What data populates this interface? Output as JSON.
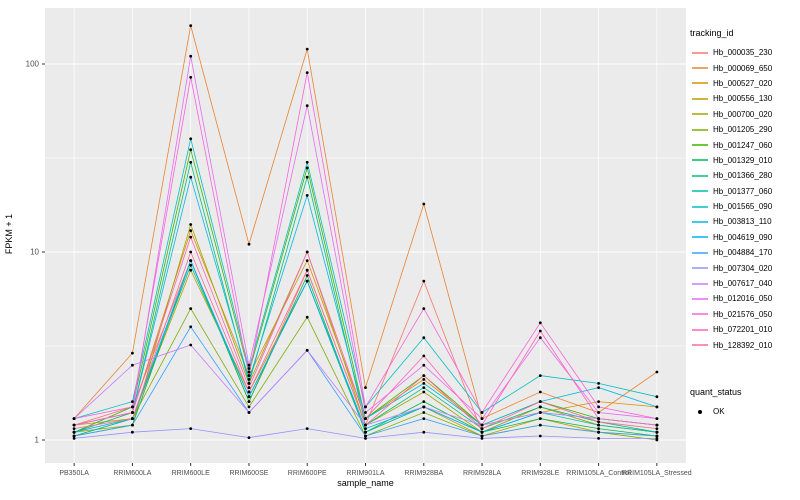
{
  "panel": {
    "background": "#EBEBEB",
    "grid_major_color": "#FFFFFF",
    "grid_minor_color": "#FFFFFF",
    "tick_color": "#333333",
    "tick_label_color": "#4D4D4D",
    "point_color": "#000000"
  },
  "chart_data": {
    "type": "line",
    "title": "",
    "xlabel": "sample_name",
    "ylabel": "FPKM + 1",
    "y_scale": "log10",
    "y_ticks": [
      1,
      10,
      100
    ],
    "y_minor_ticks": [
      3.1623,
      31.623
    ],
    "ylim": [
      1,
      200
    ],
    "legend_position": "right",
    "grid": true,
    "legend_titles": {
      "series": "tracking_id",
      "status": "quant_status"
    },
    "quant_status": {
      "label": "OK"
    },
    "categories": [
      "PB350LA",
      "RRIM600LA",
      "RRIM600LE",
      "RRIM600SE",
      "RRIM600PE",
      "RRIM901LA",
      "RRIM928BA",
      "RRIM928LA",
      "RRIM928LE",
      "RRIM105LA_Control",
      "RRIM105LA_Stressed"
    ],
    "series": [
      {
        "name": "Hb_000035_230",
        "color": "#F8766D",
        "values": [
          1.2,
          1.5,
          9,
          1.6,
          8,
          1.2,
          7,
          1.1,
          1.5,
          1.2,
          1.1
        ]
      },
      {
        "name": "Hb_000069_650",
        "color": "#EA8331",
        "values": [
          1.3,
          2.9,
          160,
          11,
          120,
          1.9,
          18,
          1.3,
          1.8,
          1.4,
          2.3
        ]
      },
      {
        "name": "Hb_000527_020",
        "color": "#D89000",
        "values": [
          1.1,
          1.4,
          13,
          2.2,
          9,
          1.3,
          2.1,
          1.2,
          1.4,
          1.6,
          1.5
        ]
      },
      {
        "name": "Hb_000556_130",
        "color": "#C09B00",
        "values": [
          1.2,
          1.3,
          8,
          1.8,
          7,
          1.1,
          1.5,
          1.05,
          1.3,
          1.1,
          1.05
        ]
      },
      {
        "name": "Hb_000700_020",
        "color": "#A3A500",
        "values": [
          1.1,
          1.2,
          14,
          2.0,
          10,
          1.2,
          1.8,
          1.1,
          1.5,
          1.2,
          1.1
        ]
      },
      {
        "name": "Hb_001205_290",
        "color": "#7CAE00",
        "values": [
          1.05,
          1.3,
          5,
          1.5,
          4.5,
          1.05,
          1.4,
          1.05,
          1.2,
          1.1,
          1.0
        ]
      },
      {
        "name": "Hb_001247_060",
        "color": "#39B600",
        "values": [
          1.1,
          1.5,
          35,
          2.3,
          28,
          1.3,
          2.2,
          1.2,
          1.6,
          1.3,
          1.2
        ]
      },
      {
        "name": "Hb_001329_010",
        "color": "#00BB4E",
        "values": [
          1.05,
          1.2,
          9,
          1.6,
          7.5,
          1.1,
          1.6,
          1.1,
          1.3,
          1.15,
          1.05
        ]
      },
      {
        "name": "Hb_001366_280",
        "color": "#00BF7D",
        "values": [
          1.1,
          1.4,
          30,
          2.0,
          25,
          1.2,
          1.9,
          1.15,
          1.5,
          1.25,
          1.1
        ]
      },
      {
        "name": "Hb_001377_060",
        "color": "#00C1A3",
        "values": [
          1.05,
          1.3,
          8.5,
          1.7,
          7,
          1.1,
          1.5,
          1.1,
          1.4,
          1.2,
          1.1
        ]
      },
      {
        "name": "Hb_001565_090",
        "color": "#00BFC4",
        "values": [
          1.3,
          1.6,
          40,
          2.4,
          30,
          1.5,
          3.5,
          1.4,
          2.2,
          2.0,
          1.7
        ]
      },
      {
        "name": "Hb_003813_110",
        "color": "#00BAE0",
        "values": [
          1.2,
          1.4,
          25,
          2.1,
          20,
          1.3,
          2.0,
          1.2,
          1.6,
          1.9,
          1.5
        ]
      },
      {
        "name": "Hb_004619_090",
        "color": "#00B0F6",
        "values": [
          1.1,
          1.3,
          9,
          1.7,
          7,
          1.15,
          1.5,
          1.1,
          1.4,
          1.3,
          1.2
        ]
      },
      {
        "name": "Hb_004884_170",
        "color": "#35A2FF",
        "values": [
          1.05,
          1.2,
          4,
          1.4,
          3,
          1.05,
          1.3,
          1.05,
          1.2,
          1.1,
          1.05
        ]
      },
      {
        "name": "Hb_007304_020",
        "color": "#9590FF",
        "values": [
          1.02,
          1.1,
          1.15,
          1.03,
          1.15,
          1.02,
          1.1,
          1.02,
          1.05,
          1.02,
          1.02
        ]
      },
      {
        "name": "Hb_007617_040",
        "color": "#C77CFF",
        "values": [
          1.3,
          2.5,
          3.2,
          1.4,
          3.0,
          1.2,
          1.5,
          1.2,
          1.4,
          1.3,
          1.2
        ]
      },
      {
        "name": "Hb_012016_050",
        "color": "#E76BF3",
        "values": [
          1.2,
          1.4,
          110,
          2.5,
          60,
          1.4,
          2.5,
          1.3,
          3.5,
          1.4,
          1.3
        ]
      },
      {
        "name": "Hb_021576_050",
        "color": "#FA62DB",
        "values": [
          1.3,
          1.5,
          85,
          2.2,
          90,
          1.5,
          5,
          1.4,
          4.2,
          1.5,
          1.3
        ]
      },
      {
        "name": "Hb_072201_010",
        "color": "#FF62BC",
        "values": [
          1.2,
          1.4,
          12,
          1.9,
          10,
          1.3,
          2.8,
          1.2,
          3.8,
          1.3,
          1.2
        ]
      },
      {
        "name": "Hb_128392_010",
        "color": "#FF6A98",
        "values": [
          1.15,
          1.3,
          10,
          1.8,
          8,
          1.2,
          2.2,
          1.15,
          1.6,
          1.25,
          1.15
        ]
      }
    ]
  }
}
